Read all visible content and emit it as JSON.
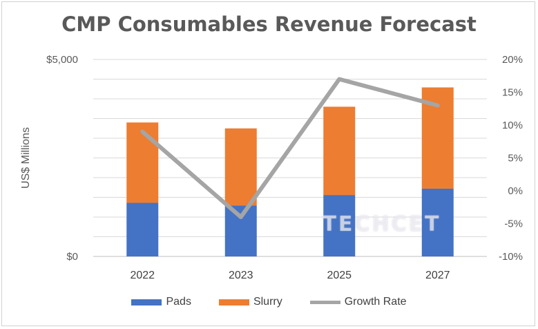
{
  "chart_data": {
    "type": "bar",
    "title": "CMP Consumables Revenue Forecast",
    "xlabel": "",
    "ylabel": "US$ Millions",
    "categories": [
      "2022",
      "2023",
      "2025",
      "2027"
    ],
    "series": [
      {
        "name": "Pads",
        "type": "bar",
        "stacked": true,
        "axis": "left",
        "color": "#4472c4",
        "values": [
          1360,
          1290,
          1560,
          1720
        ]
      },
      {
        "name": "Slurry",
        "type": "bar",
        "stacked": true,
        "axis": "left",
        "color": "#ed7d31",
        "values": [
          2040,
          1960,
          2240,
          2570
        ]
      },
      {
        "name": "Growth Rate",
        "type": "line",
        "axis": "right",
        "color": "#a5a5a5",
        "values": [
          9,
          -4,
          17,
          13
        ]
      }
    ],
    "ylim": [
      0,
      5000
    ],
    "y_ticks": [
      "$0",
      "$5,000"
    ],
    "y2lim": [
      -10,
      20
    ],
    "y2_ticks": [
      "-10%",
      "-5%",
      "0%",
      "5%",
      "10%",
      "15%",
      "20%"
    ],
    "grid": true,
    "legend_position": "bottom",
    "watermark": "TECHCET"
  }
}
